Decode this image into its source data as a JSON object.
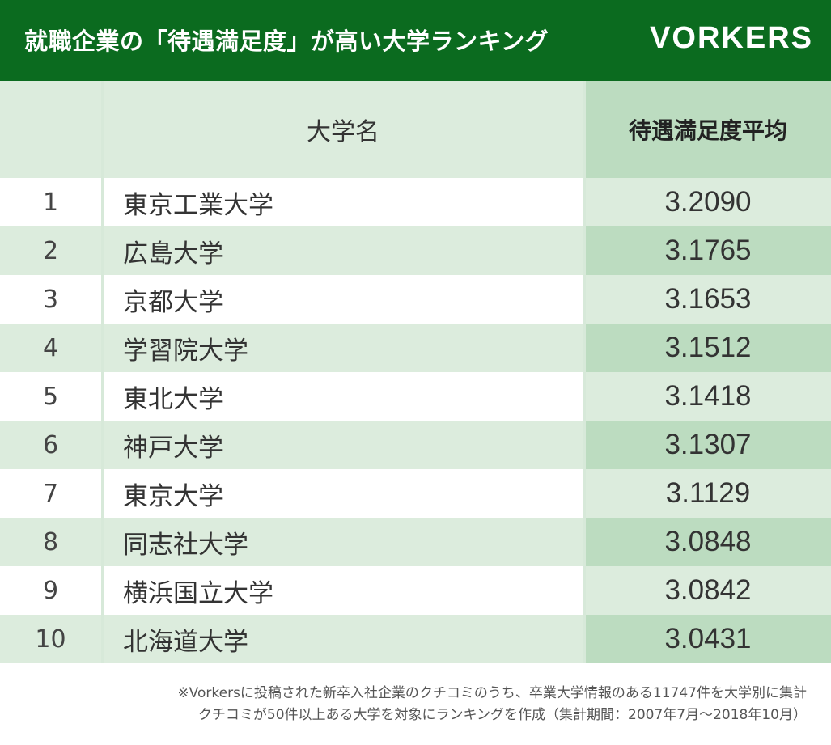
{
  "header": {
    "title": "就職企業の「待遇満足度」が高い大学ランキング",
    "logo": "VORKERS"
  },
  "chart_data": {
    "type": "table",
    "columns": [
      "",
      "大学名",
      "待遇満足度平均"
    ],
    "rows": [
      {
        "rank": "1",
        "name": "東京工業大学",
        "score": "3.2090"
      },
      {
        "rank": "2",
        "name": "広島大学",
        "score": "3.1765"
      },
      {
        "rank": "3",
        "name": "京都大学",
        "score": "3.1653"
      },
      {
        "rank": "4",
        "name": "学習院大学",
        "score": "3.1512"
      },
      {
        "rank": "5",
        "name": "東北大学",
        "score": "3.1418"
      },
      {
        "rank": "6",
        "name": "神戸大学",
        "score": "3.1307"
      },
      {
        "rank": "7",
        "name": "東京大学",
        "score": "3.1129"
      },
      {
        "rank": "8",
        "name": "同志社大学",
        "score": "3.0848"
      },
      {
        "rank": "9",
        "name": "横浜国立大学",
        "score": "3.0842"
      },
      {
        "rank": "10",
        "name": "北海道大学",
        "score": "3.0431"
      }
    ]
  },
  "footnote": [
    "※Vorkersに投稿された新卒入社企業のクチコミのうち、卒業大学情報のある11747件を大学別に集計",
    "クチコミが50件以上ある大学を対象にランキングを作成（集計期間：2007年7月〜2018年10月）"
  ],
  "colors": {
    "header_bg": "#0b6b1f",
    "row_light": "#dcecdd",
    "score_dark": "#bcdcc0"
  }
}
